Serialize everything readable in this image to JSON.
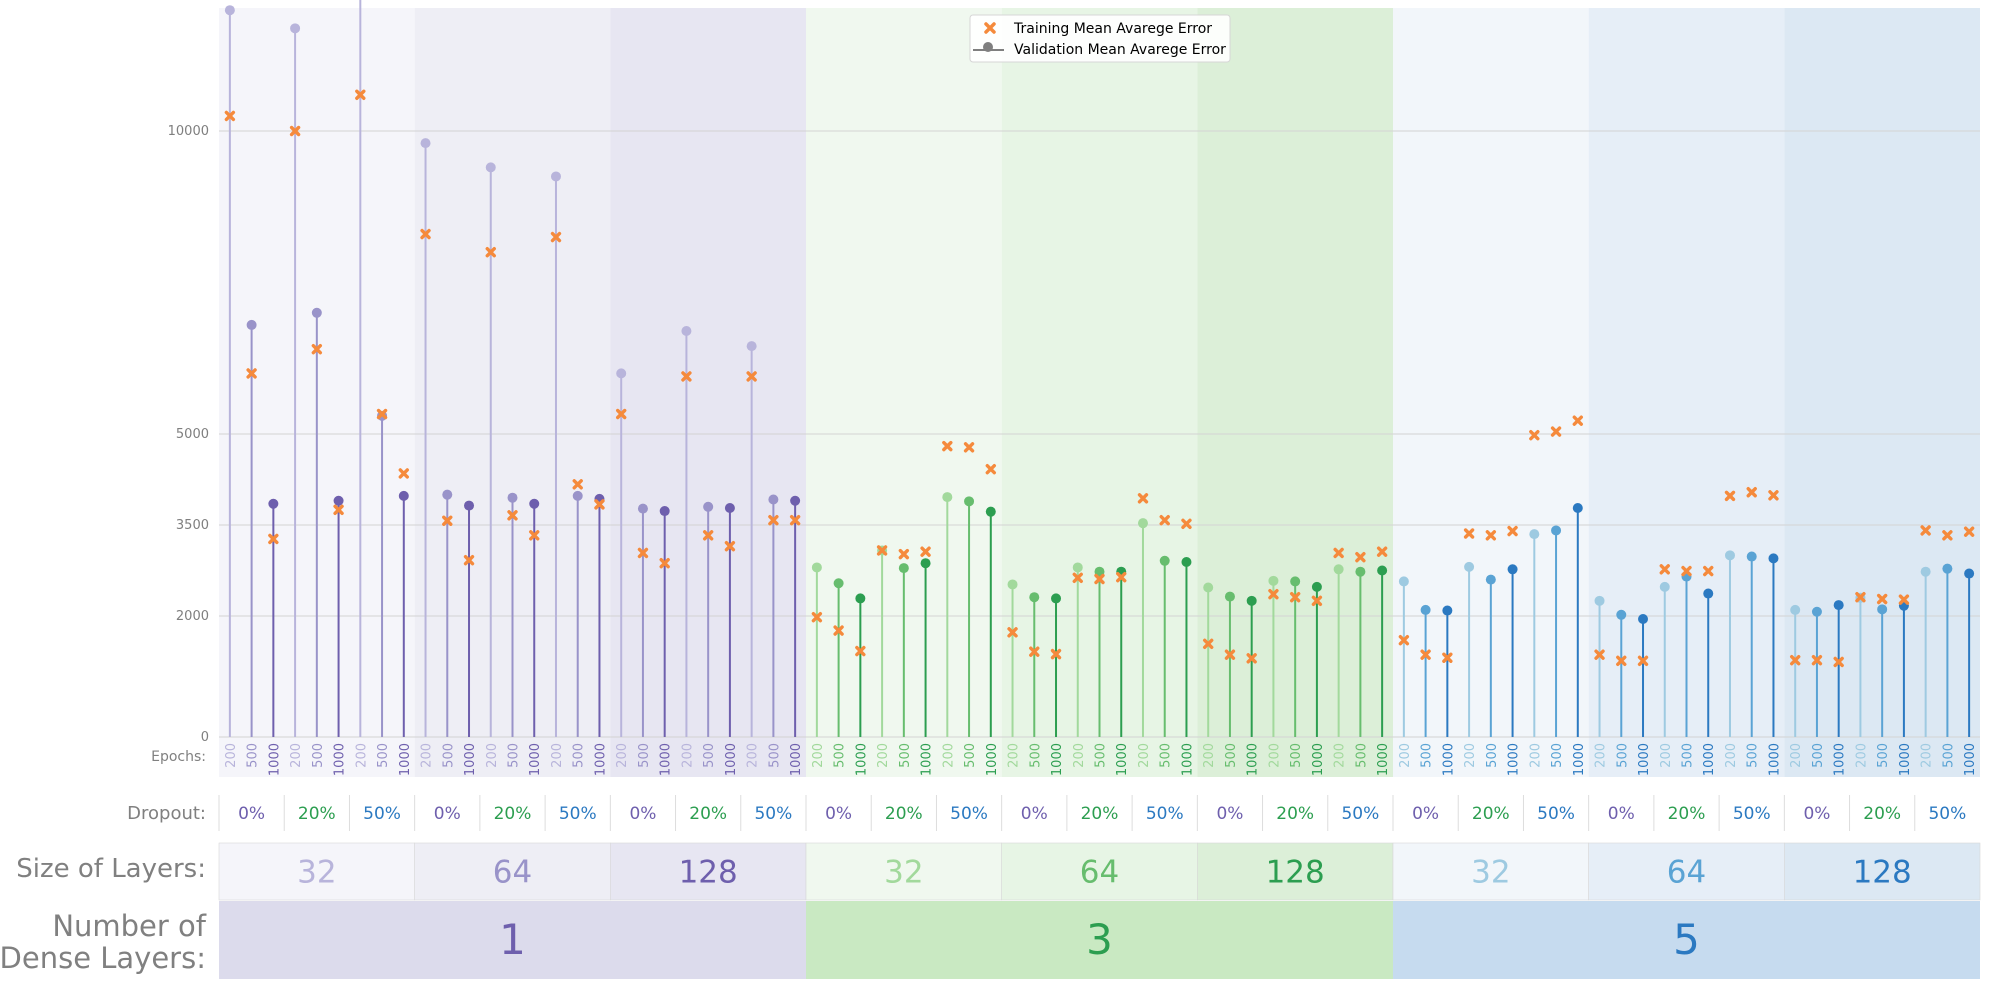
{
  "chart_data": {
    "type": "scatter",
    "legend": {
      "placement": "top-center",
      "entries": [
        {
          "label": "Training Mean Avarege Error",
          "marker": "x",
          "color": "#f58a3c"
        },
        {
          "label": "Validation Mean Avarege Error",
          "marker": "circle-stem",
          "color": "#7f7f7f"
        }
      ]
    },
    "yticks": [
      "0",
      "2000",
      "3500",
      "5000",
      "10000"
    ],
    "ytick_values": [
      0,
      2000,
      3500,
      5000,
      10000
    ],
    "ylim": [
      0,
      10500
    ],
    "grid": true,
    "row_labels": {
      "epochs": "Epochs:",
      "dropout": "Dropout:",
      "size": "Size of Layers:",
      "dense_line1": "Number of",
      "dense_line2": "Dense Layers:"
    },
    "epochs": [
      "200",
      "500",
      "1000"
    ],
    "dropouts": [
      "0%",
      "20%",
      "50%"
    ],
    "sizes": [
      "32",
      "64",
      "128"
    ],
    "dense_layers": [
      "1",
      "3",
      "5"
    ],
    "validation": [
      12000,
      6800,
      3850,
      11700,
      7000,
      3900,
      12300,
      5300,
      3980,
      9800,
      4000,
      3820,
      9400,
      3950,
      3850,
      9250,
      3980,
      3930,
      6000,
      3770,
      3730,
      6700,
      3800,
      3780,
      6450,
      3920,
      3900,
      2800,
      2540,
      2290,
      3080,
      2790,
      2870,
      3960,
      3890,
      3720,
      2520,
      2310,
      2290,
      2800,
      2730,
      2730,
      3530,
      2910,
      2890,
      2470,
      2320,
      2250,
      2580,
      2570,
      2480,
      2770,
      2730,
      2750,
      2570,
      2100,
      2090,
      2810,
      2600,
      2770,
      3350,
      3410,
      3780,
      2250,
      2020,
      1950,
      2480,
      2650,
      2370,
      3000,
      2980,
      2950,
      2100,
      2070,
      2180,
      2300,
      2110,
      2170,
      2730,
      2780,
      2700
    ],
    "training": [
      10250,
      6000,
      3270,
      10000,
      6400,
      3750,
      10600,
      5330,
      4350,
      8300,
      3570,
      2920,
      8000,
      3660,
      3330,
      8250,
      4170,
      3840,
      5330,
      3040,
      2870,
      5950,
      3330,
      3150,
      5950,
      3580,
      3580,
      1980,
      1760,
      1420,
      3080,
      3020,
      3060,
      4800,
      4780,
      4420,
      1730,
      1410,
      1370,
      2630,
      2610,
      2640,
      3940,
      3580,
      3520,
      1540,
      1360,
      1300,
      2360,
      2310,
      2250,
      3040,
      2970,
      3060,
      1600,
      1360,
      1310,
      3360,
      3330,
      3400,
      4980,
      5040,
      5220,
      1360,
      1260,
      1260,
      2770,
      2740,
      2740,
      3980,
      4040,
      3990,
      1270,
      1270,
      1240,
      2310,
      2280,
      2270,
      3410,
      3330,
      3390
    ]
  }
}
